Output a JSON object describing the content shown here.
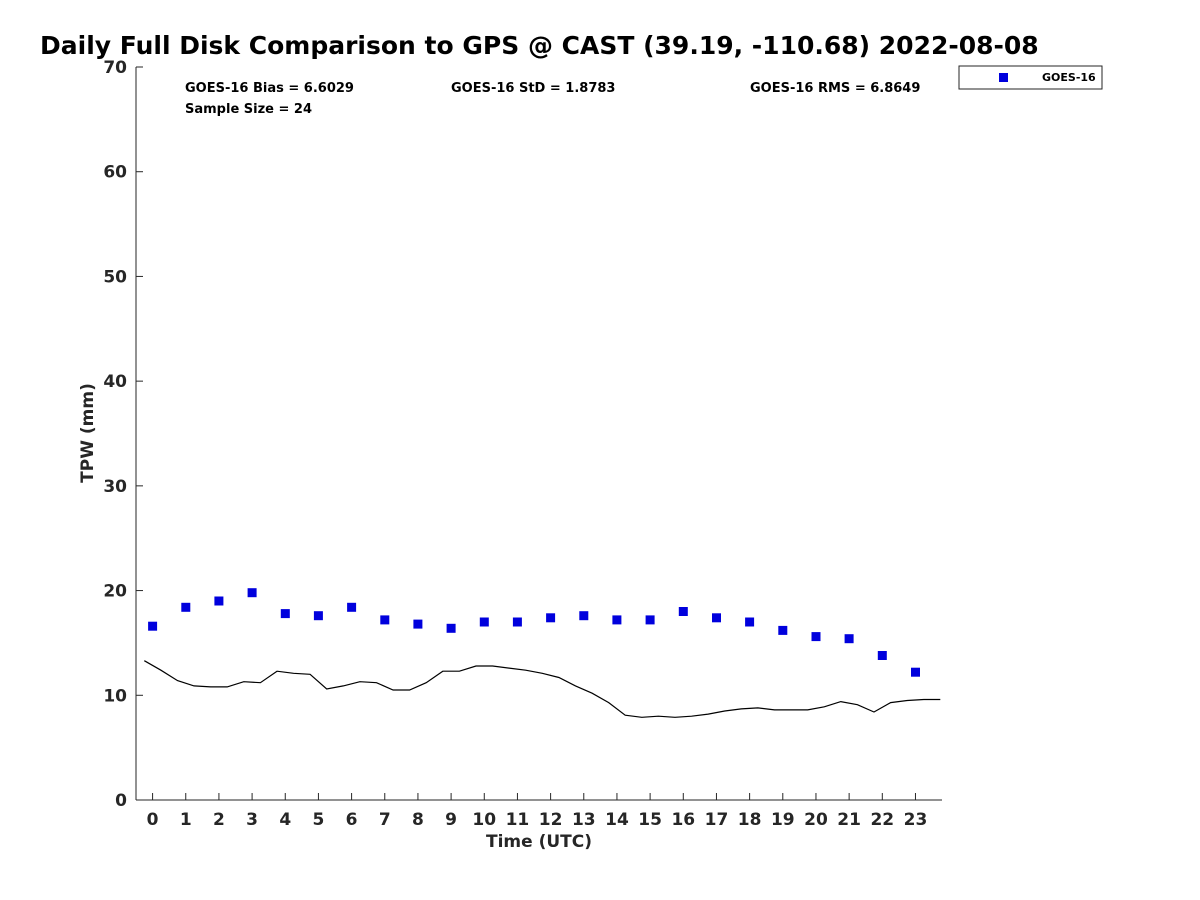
{
  "chart_data": {
    "type": "scatter",
    "title": "Daily Full Disk Comparison to GPS @ CAST (39.19, -110.68) 2022-08-08",
    "xlabel": "Time (UTC)",
    "ylabel": "TPW (mm)",
    "xlim": [
      -0.5,
      23.8
    ],
    "ylim": [
      0,
      70
    ],
    "x_ticks": [
      "0",
      "1",
      "2",
      "3",
      "4",
      "5",
      "6",
      "7",
      "8",
      "9",
      "10",
      "11",
      "12",
      "13",
      "14",
      "15",
      "16",
      "17",
      "18",
      "19",
      "20",
      "21",
      "22",
      "23"
    ],
    "y_ticks": [
      "0",
      "10",
      "20",
      "30",
      "40",
      "50",
      "60",
      "70"
    ],
    "grid": false,
    "legend_position": "outside-top-right",
    "stats": {
      "bias": "GOES-16 Bias = 6.6029",
      "std": "GOES-16 StD = 1.8783",
      "rms": "GOES-16 RMS = 6.8649",
      "sample": "Sample Size = 24"
    },
    "series": [
      {
        "name": "GOES-16",
        "marker": "square",
        "color": "#0000dd",
        "x": [
          0,
          1,
          2,
          3,
          4,
          5,
          6,
          7,
          8,
          9,
          10,
          11,
          12,
          13,
          14,
          15,
          16,
          17,
          18,
          19,
          20,
          21,
          22,
          23
        ],
        "y": [
          16.6,
          18.4,
          19.0,
          19.8,
          17.8,
          17.6,
          18.4,
          17.2,
          16.8,
          16.4,
          17.0,
          17.0,
          17.4,
          17.6,
          17.2,
          17.2,
          18.0,
          17.4,
          17.0,
          16.2,
          15.6,
          15.4,
          13.8,
          12.2
        ]
      },
      {
        "marker": "line",
        "color": "#000000",
        "x": [
          -0.25,
          0.25,
          0.75,
          1.25,
          1.75,
          2.25,
          2.75,
          3.25,
          3.75,
          4.25,
          4.75,
          5.25,
          5.75,
          6.25,
          6.75,
          7.25,
          7.75,
          8.25,
          8.75,
          9.25,
          9.75,
          10.25,
          10.75,
          11.25,
          11.75,
          12.25,
          12.75,
          13.25,
          13.75,
          14.25,
          14.75,
          15.25,
          15.75,
          16.25,
          16.75,
          17.25,
          17.75,
          18.25,
          18.75,
          19.25,
          19.75,
          20.25,
          20.75,
          21.25,
          21.75,
          22.25,
          22.75,
          23.25,
          23.75
        ],
        "y": [
          13.3,
          12.4,
          11.4,
          10.9,
          10.8,
          10.8,
          11.3,
          11.2,
          12.3,
          12.1,
          12.0,
          10.6,
          10.9,
          11.3,
          11.2,
          10.5,
          10.5,
          11.2,
          12.3,
          12.3,
          12.8,
          12.8,
          12.6,
          12.4,
          12.1,
          11.7,
          10.9,
          10.2,
          9.3,
          8.1,
          7.9,
          8.0,
          7.9,
          8.0,
          8.2,
          8.5,
          8.7,
          8.8,
          8.6,
          8.6,
          8.6,
          8.9,
          9.4,
          9.1,
          8.4,
          9.3,
          9.5,
          9.6,
          9.6
        ]
      }
    ]
  }
}
